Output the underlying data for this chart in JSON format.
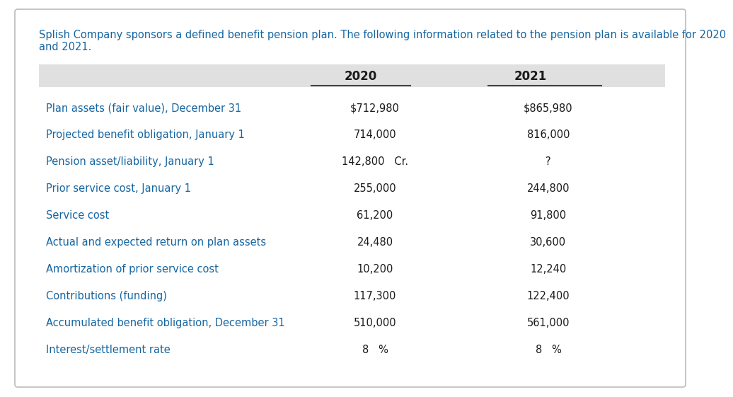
{
  "title_line1": "Splish Company sponsors a defined benefit pension plan. The following information related to the pension plan is available for 2020",
  "title_line2": "and 2021.",
  "title_color": "#1565a0",
  "title_fontsize": 10.5,
  "header_bg_color": "#e0e0e0",
  "header_text_color": "#1a1a1a",
  "col_headers": [
    "",
    "2020",
    "2021"
  ],
  "rows": [
    [
      "Plan assets (fair value), December 31",
      "$712,980",
      "$865,980"
    ],
    [
      "Projected benefit obligation, January 1",
      "714,000",
      "816,000"
    ],
    [
      "Pension asset/liability, January 1",
      "142,800   Cr.",
      "?"
    ],
    [
      "Prior service cost, January 1",
      "255,000",
      "244,800"
    ],
    [
      "Service cost",
      "61,200",
      "91,800"
    ],
    [
      "Actual and expected return on plan assets",
      "24,480",
      "30,600"
    ],
    [
      "Amortization of prior service cost",
      "10,200",
      "12,240"
    ],
    [
      "Contributions (funding)",
      "117,300",
      "122,400"
    ],
    [
      "Accumulated benefit obligation, December 31",
      "510,000",
      "561,000"
    ],
    [
      "Interest/settlement rate",
      "8   %",
      "8   %"
    ]
  ],
  "row_label_color": "#1565a0",
  "value_color": "#1a1a1a",
  "bg_color": "#ffffff",
  "border_color": "#bbbbbb",
  "separator_line_color": "#444444",
  "label_fontsize": 10.5,
  "value_fontsize": 10.5,
  "header_fontsize": 12.0
}
